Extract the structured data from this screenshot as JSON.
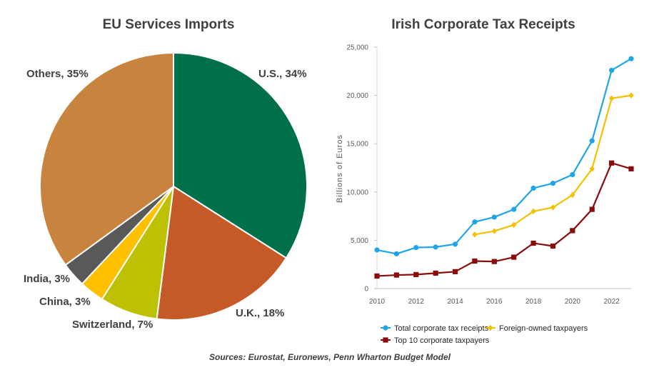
{
  "chart_data": [
    {
      "type": "pie",
      "title": "EU Services Imports",
      "slices": [
        {
          "label": "U.S., 34%",
          "name": "U.S.",
          "value": 34,
          "color": "#00704A"
        },
        {
          "label": "U.K., 18%",
          "name": "U.K.",
          "value": 18,
          "color": "#C55A28"
        },
        {
          "label": "Switzerland, 7%",
          "name": "Switzerland",
          "value": 7,
          "color": "#BDC003"
        },
        {
          "label": "China, 3%",
          "name": "China",
          "value": 3,
          "color": "#FFC000"
        },
        {
          "label": "India, 3%",
          "name": "India",
          "value": 3,
          "color": "#595959"
        },
        {
          "label": "Others, 35%",
          "name": "Others",
          "value": 35,
          "color": "#C8843F"
        }
      ]
    },
    {
      "type": "line",
      "title": "Irish Corporate Tax Receipts",
      "xlabel": "",
      "ylabel": "Billions of Euros",
      "xlim": [
        2010,
        2023
      ],
      "ylim": [
        0,
        25000
      ],
      "x_ticks": [
        2010,
        2012,
        2014,
        2016,
        2018,
        2020,
        2022
      ],
      "y_ticks": [
        0,
        5000,
        10000,
        15000,
        20000,
        25000
      ],
      "y_tick_labels": [
        "0",
        "5,000",
        "10,000",
        "15,000",
        "20,000",
        "25,000"
      ],
      "series": [
        {
          "name": "Total corporate tax receipts",
          "color": "#1EA5E8",
          "marker": "circle",
          "x": [
            2010,
            2011,
            2012,
            2013,
            2014,
            2015,
            2016,
            2017,
            2018,
            2019,
            2020,
            2021,
            2022,
            2023
          ],
          "values": [
            4000,
            3600,
            4250,
            4300,
            4600,
            6900,
            7400,
            8200,
            10400,
            10900,
            11800,
            15300,
            22600,
            23800
          ]
        },
        {
          "name": "Foreign-owned taxpayers",
          "color": "#F5C000",
          "marker": "diamond",
          "x": [
            2015,
            2016,
            2017,
            2018,
            2019,
            2020,
            2021,
            2022,
            2023
          ],
          "values": [
            5600,
            5950,
            6600,
            8000,
            8400,
            9700,
            12400,
            19700,
            20000
          ]
        },
        {
          "name": "Top 10 corporate taxpayers",
          "color": "#8B0A0A",
          "marker": "square",
          "x": [
            2010,
            2011,
            2012,
            2013,
            2014,
            2015,
            2016,
            2017,
            2018,
            2019,
            2020,
            2021,
            2022,
            2023
          ],
          "values": [
            1300,
            1400,
            1450,
            1600,
            1750,
            2850,
            2800,
            3250,
            4700,
            4400,
            6000,
            8200,
            13000,
            12400
          ]
        }
      ]
    }
  ],
  "footer": {
    "source": "Sources: Eurostat, Euronews, Penn Wharton Budget Model"
  }
}
